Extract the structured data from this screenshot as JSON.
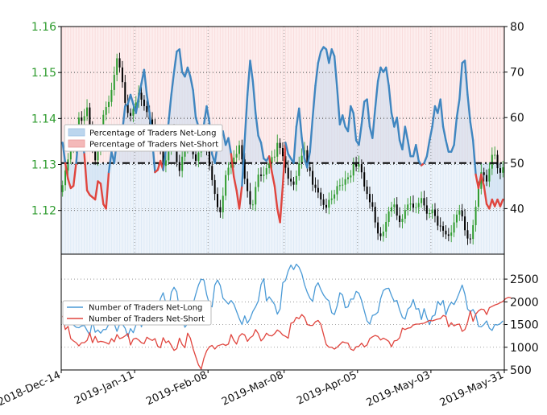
{
  "chart_data": [
    {
      "type": "line",
      "panel": "top",
      "left_axis": {
        "ylim": [
          1.1105,
          1.16
        ],
        "ticks": [
          1.12,
          1.13,
          1.14,
          1.15,
          1.16
        ],
        "tick_labels": [
          "1.12",
          "1.13",
          "1.14",
          "1.15",
          "1.16"
        ],
        "color": "#2e9b2e"
      },
      "right_axis": {
        "ylim": [
          30,
          80
        ],
        "ticks": [
          40,
          50,
          60,
          70,
          80
        ],
        "tick_labels": [
          "40",
          "50",
          "60",
          "70",
          "80"
        ]
      },
      "x_ticks": [
        "2018-Dec-14",
        "2019-Jan-11",
        "2019-Feb-08",
        "2019-Mar-08",
        "2019-Apr-05",
        "2019-May-03",
        "2019-May-31"
      ],
      "grid": true,
      "legend_placement": "upper-left",
      "legend": [
        {
          "label": "Percentage of Traders Net-Long",
          "color": "#bcd6ee"
        },
        {
          "label": "Percentage of Traders Net-Short",
          "color": "#f4b9b9"
        }
      ],
      "reference_line": {
        "value": 50,
        "style": "dash-dot",
        "color": "#000000"
      },
      "series": [
        {
          "role": "percent_net_long",
          "color": "#3f86c0",
          "short_color": "#e0453e",
          "values": [
            54.5,
            50.0,
            46.5,
            44.5,
            45.0,
            50.0,
            57.0,
            56.5,
            52.0,
            44.0,
            43.0,
            42.5,
            42.0,
            46.0,
            45.5,
            41.0,
            40.0,
            48.0,
            52.5,
            50.0,
            55.0,
            56.0,
            57.0,
            62.5,
            63.0,
            65.0,
            63.0,
            61.0,
            64.5,
            67.5,
            70.5,
            65.0,
            61.0,
            55.0,
            48.0,
            48.5,
            50.5,
            48.5,
            53.0,
            59.0,
            65.0,
            70.0,
            74.5,
            75.0,
            70.0,
            69.0,
            71.0,
            69.0,
            66.0,
            60.0,
            58.0,
            55.5,
            58.5,
            62.5,
            59.0,
            52.0,
            50.0,
            54.0,
            56.0,
            57.0,
            54.0,
            55.5,
            52.0,
            47.0,
            44.0,
            40.0,
            45.0,
            55.0,
            65.0,
            72.5,
            68.0,
            61.0,
            56.0,
            54.5,
            51.0,
            50.5,
            51.5,
            48.0,
            45.0,
            40.0,
            37.0,
            45.0,
            54.5,
            52.0,
            51.0,
            50.0,
            58.0,
            62.0,
            55.5,
            51.0,
            49.0,
            52.5,
            60.0,
            67.0,
            72.0,
            74.5,
            75.5,
            75.0,
            72.0,
            75.0,
            73.5,
            66.5,
            58.5,
            60.5,
            58.0,
            57.0,
            62.5,
            61.0,
            55.0,
            54.0,
            58.5,
            63.5,
            64.0,
            58.0,
            55.5,
            62.0,
            68.0,
            71.0,
            70.0,
            71.0,
            67.0,
            61.0,
            58.0,
            60.0,
            55.0,
            53.0,
            58.0,
            55.0,
            51.5,
            51.5,
            54.0,
            50.5,
            49.5,
            50.0,
            51.5,
            55.0,
            58.0,
            62.5,
            61.0,
            64.0,
            58.0,
            55.0,
            52.5,
            52.5,
            54.0,
            60.0,
            64.0,
            72.0,
            72.5,
            65.0,
            59.0,
            55.0,
            47.5,
            44.5,
            47.5,
            45.0,
            41.0,
            40.0,
            42.0,
            40.5,
            42.0,
            40.5,
            42.0
          ]
        },
        {
          "role": "eurusd_price",
          "style": "candlestick",
          "color": "#2e9b2e",
          "down_color": "#000000",
          "axis": "left",
          "values": [
            1.1255,
            1.1287,
            1.1311,
            1.1337,
            1.1339,
            1.1367,
            1.1402,
            1.1395,
            1.1405,
            1.1424,
            1.1382,
            1.1339,
            1.1309,
            1.1334,
            1.1367,
            1.1408,
            1.1425,
            1.1436,
            1.1462,
            1.1495,
            1.1531,
            1.1511,
            1.1479,
            1.1434,
            1.1412,
            1.1406,
            1.1421,
            1.1435,
            1.1456,
            1.1441,
            1.1427,
            1.1414,
            1.1398,
            1.1381,
            1.1375,
            1.1366,
            1.1332,
            1.1297,
            1.1309,
            1.1333,
            1.1376,
            1.1342,
            1.1305,
            1.1286,
            1.1317,
            1.1336,
            1.1367,
            1.1348,
            1.1322,
            1.1308,
            1.1326,
            1.1345,
            1.1355,
            1.1334,
            1.1297,
            1.1266,
            1.1236,
            1.1207,
            1.1196,
            1.1232,
            1.1277,
            1.1293,
            1.1303,
            1.1315,
            1.1323,
            1.1342,
            1.1311,
            1.1269,
            1.1242,
            1.1213,
            1.1213,
            1.1251,
            1.1278,
            1.1275,
            1.1278,
            1.1292,
            1.1303,
            1.1316,
            1.1317,
            1.1347,
            1.1336,
            1.1318,
            1.1293,
            1.1269,
            1.1263,
            1.1256,
            1.1275,
            1.1303,
            1.1319,
            1.1331,
            1.1294,
            1.1286,
            1.1256,
            1.1249,
            1.1239,
            1.1224,
            1.1212,
            1.1206,
            1.1223,
            1.1226,
            1.1235,
            1.1253,
            1.1255,
            1.1256,
            1.1268,
            1.1272,
            1.1276,
            1.1301,
            1.1295,
            1.1301,
            1.1283,
            1.1252,
            1.1236,
            1.1218,
            1.1208,
            1.1174,
            1.115,
            1.1144,
            1.1154,
            1.1175,
            1.1198,
            1.1207,
            1.1213,
            1.1189,
            1.1175,
            1.1182,
            1.1201,
            1.1213,
            1.1215,
            1.1206,
            1.1207,
            1.1216,
            1.1227,
            1.1211,
            1.1193,
            1.1194,
            1.1202,
            1.1188,
            1.1167,
            1.1166,
            1.1156,
            1.1148,
            1.1145,
            1.1152,
            1.1174,
            1.1191,
            1.12,
            1.1187,
            1.1157,
            1.1139,
            1.1138,
            1.1168,
            1.1208,
            1.1247,
            1.1283,
            1.1277,
            1.1263,
            1.1291,
            1.1321,
            1.1321,
            1.1292,
            1.1282,
            1.1294,
            1.1315,
            1.1324
          ]
        }
      ]
    },
    {
      "type": "line",
      "panel": "bottom",
      "right_axis": {
        "ylim": [
          500,
          3050
        ],
        "ticks": [
          500,
          1000,
          1500,
          2000,
          2500
        ],
        "tick_labels": [
          "500",
          "1000",
          "1500",
          "2000",
          "2500"
        ]
      },
      "grid": true,
      "legend_placement": "upper-left",
      "series": [
        {
          "name": "Number of Traders Net-Long",
          "color": "#4a9ad6",
          "values": [
            1685,
            1490,
            1560,
            1650,
            1490,
            1440,
            1430,
            1470,
            1480,
            1370,
            1270,
            1580,
            1330,
            1380,
            1310,
            1390,
            1390,
            1510,
            1600,
            1520,
            1350,
            1510,
            1510,
            1420,
            1240,
            1410,
            1320,
            1490,
            1660,
            1450,
            1620,
            1750,
            1790,
            1980,
            1960,
            1810,
            2070,
            2200,
            1970,
            1790,
            2210,
            2320,
            2220,
            1820,
            1610,
            1440,
            1520,
            1720,
            1950,
            2170,
            2370,
            2500,
            2480,
            2160,
            1950,
            1890,
            2370,
            2480,
            2360,
            2080,
            2020,
            1950,
            2030,
            1950,
            1790,
            1630,
            1500,
            1690,
            1530,
            1630,
            1790,
            1890,
            2020,
            2380,
            2510,
            2020,
            2110,
            2030,
            1940,
            1730,
            1840,
            2420,
            2470,
            2680,
            2810,
            2710,
            2830,
            2760,
            2620,
            2380,
            2210,
            2080,
            2010,
            2330,
            2420,
            2270,
            2150,
            2070,
            2020,
            1760,
            1720,
            1910,
            2200,
            2150,
            1870,
            1890,
            2060,
            2060,
            2230,
            2190,
            2030,
            1800,
            1580,
            1510,
            1700,
            1720,
            1770,
            2070,
            2250,
            2290,
            2300,
            2140,
            2010,
            2030,
            1820,
            1660,
            1620,
            1840,
            1890,
            2050,
            1840,
            1850,
            1610,
            1850,
            1650,
            1500,
            1680,
            1710,
            2010,
            1930,
            2030,
            1710,
            1890,
            1990,
            1940,
            2060,
            2210,
            2370,
            2170,
            1840,
            1780,
            1830,
            1720,
            1460,
            1450,
            1500,
            1580,
            1420,
            1370,
            1500,
            1490,
            1520,
            1580
          ]
        },
        {
          "name": "Number of Traders Net-Short",
          "color": "#e0453e",
          "values": [
            1690,
            1390,
            1460,
            1190,
            1140,
            1100,
            1030,
            1100,
            1100,
            1150,
            1320,
            1100,
            1240,
            1110,
            1130,
            1120,
            1100,
            1070,
            1190,
            1120,
            1280,
            1190,
            1210,
            1250,
            1300,
            1050,
            1180,
            1200,
            1160,
            1100,
            1080,
            1220,
            1180,
            1150,
            1190,
            1020,
            990,
            1210,
            1100,
            1140,
            1040,
            930,
            970,
            1200,
            1060,
            990,
            1310,
            1200,
            970,
            790,
            610,
            520,
            760,
            920,
            1010,
            1040,
            960,
            1030,
            1050,
            1070,
            1040,
            1070,
            1280,
            1150,
            1070,
            1240,
            1300,
            1270,
            1130,
            1210,
            1250,
            1390,
            1300,
            1140,
            1200,
            1310,
            1260,
            1250,
            1300,
            1380,
            1340,
            1270,
            1240,
            1200,
            1530,
            1550,
            1660,
            1630,
            1720,
            1660,
            1500,
            1480,
            1480,
            1560,
            1590,
            1510,
            1280,
            1060,
            1000,
            1000,
            960,
            1000,
            1060,
            1120,
            1100,
            1090,
            960,
            930,
            1010,
            1020,
            1090,
            1010,
            1050,
            1190,
            1230,
            1260,
            1240,
            1160,
            1200,
            1170,
            1130,
            1010,
            1140,
            1150,
            1210,
            1420,
            1390,
            1420,
            1430,
            1490,
            1510,
            1510,
            1520,
            1530,
            1560,
            1590,
            1580,
            1600,
            1620,
            1630,
            1700,
            1680,
            1450,
            1540,
            1470,
            1500,
            1510,
            1350,
            1390,
            1550,
            1800,
            1570,
            1730,
            1800,
            1840,
            1830,
            1720,
            1870,
            1900,
            1930,
            1950,
            1980,
            2010,
            2070,
            2100,
            2090
          ]
        }
      ]
    }
  ]
}
